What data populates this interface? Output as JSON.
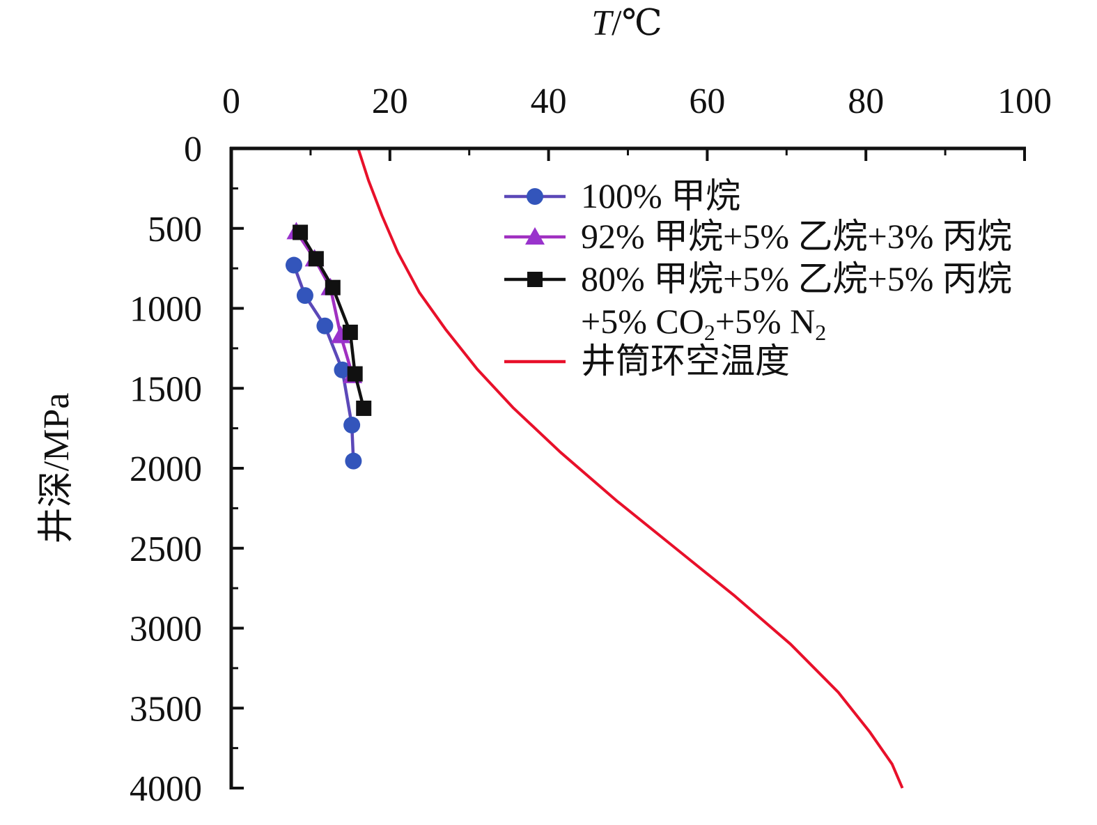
{
  "chart_data": {
    "type": "line",
    "xlabel": "T/℃",
    "xlabel_italic_part": "T",
    "xlabel_rest": "/℃",
    "ylabel": "井深/MPa",
    "xlim": [
      0,
      100
    ],
    "ylim": [
      0,
      4000
    ],
    "y_inverted": true,
    "x_axis_position": "top",
    "x_ticks": [
      0,
      20,
      40,
      60,
      80,
      100
    ],
    "y_ticks": [
      0,
      500,
      1000,
      1500,
      2000,
      2500,
      3000,
      3500,
      4000
    ],
    "x_tick_labels": [
      "0",
      "20",
      "40",
      "60",
      "80",
      "100"
    ],
    "y_tick_labels": [
      "0",
      "500",
      "1000",
      "1500",
      "2000",
      "2500",
      "3000",
      "3500",
      "4000"
    ],
    "grid": false,
    "legend_position": "top-right",
    "series": [
      {
        "name": "100% 甲烷",
        "color": "#5b48b8",
        "marker_color": "#3355bb",
        "marker": "circle",
        "points": [
          [
            7.9,
            730
          ],
          [
            9.3,
            920
          ],
          [
            11.8,
            1110
          ],
          [
            14.0,
            1385
          ],
          [
            15.2,
            1730
          ],
          [
            15.4,
            1955
          ]
        ]
      },
      {
        "name": "92% 甲烷+5% 乙烷+3% 丙烷",
        "color": "#a030c0",
        "marker_color": "#9933cc",
        "marker": "triangle",
        "points": [
          [
            8.2,
            520
          ],
          [
            10.5,
            690
          ],
          [
            12.5,
            870
          ],
          [
            13.8,
            1170
          ],
          [
            15.3,
            1420
          ]
        ]
      },
      {
        "name": "80% 甲烷+5% 乙烷+5% 丙烷",
        "name_line2_parts": [
          "+5% CO",
          "2",
          "+5% N",
          "2"
        ],
        "color": "#111111",
        "marker_color": "#111111",
        "marker": "square",
        "points": [
          [
            8.7,
            525
          ],
          [
            10.7,
            690
          ],
          [
            12.8,
            870
          ],
          [
            15.0,
            1150
          ],
          [
            15.6,
            1410
          ],
          [
            16.7,
            1625
          ]
        ]
      },
      {
        "name": "井筒环空温度",
        "color": "#e8102a",
        "marker": "none",
        "points": [
          [
            16.0,
            0
          ],
          [
            17.3,
            200
          ],
          [
            19.0,
            420
          ],
          [
            21.0,
            650
          ],
          [
            23.7,
            900
          ],
          [
            27.0,
            1130
          ],
          [
            31.0,
            1380
          ],
          [
            35.5,
            1620
          ],
          [
            41.5,
            1900
          ],
          [
            48.5,
            2200
          ],
          [
            56.0,
            2500
          ],
          [
            63.5,
            2800
          ],
          [
            70.5,
            3100
          ],
          [
            76.5,
            3400
          ],
          [
            80.5,
            3650
          ],
          [
            83.3,
            3850
          ],
          [
            84.6,
            4000
          ]
        ]
      }
    ]
  }
}
